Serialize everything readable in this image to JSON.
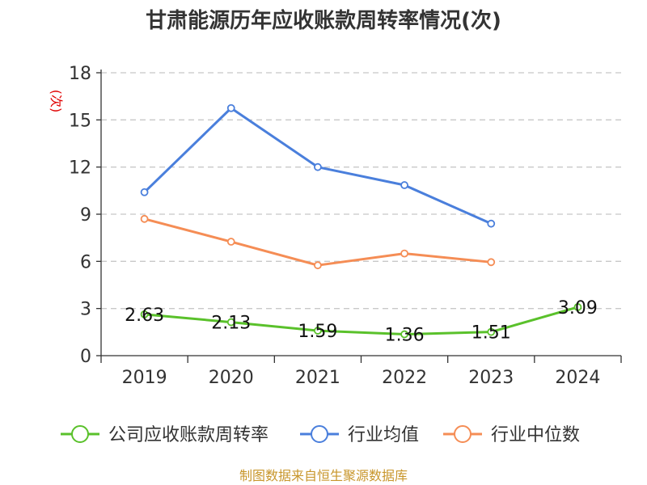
{
  "title": "甘肃能源历年应收账款周转率情况(次)",
  "source": "制图数据来自恒生聚源数据库",
  "colors": {
    "company": "#5ac12b",
    "industry_avg": "#4a7fdc",
    "industry_median": "#f58d55",
    "grid": "#c8c8c8",
    "axis": "#333333"
  },
  "chart_data": {
    "type": "line",
    "title": "甘肃能源历年应收账款周转率情况(次)",
    "xlabel": "",
    "ylabel": "(次)",
    "categories": [
      "2019",
      "2020",
      "2021",
      "2022",
      "2023",
      "2024"
    ],
    "ylim": [
      0,
      18
    ],
    "yticks": [
      0,
      3,
      6,
      9,
      12,
      15,
      18
    ],
    "grid": true,
    "legend_position": "bottom",
    "series": [
      {
        "key": "company",
        "name": "公司应收账款周转率",
        "values": [
          2.63,
          2.13,
          1.59,
          1.36,
          1.51,
          3.09
        ],
        "labels": [
          "2.63",
          "2.13",
          "1.59",
          "1.36",
          "1.51",
          "3.09"
        ]
      },
      {
        "key": "industry_avg",
        "name": "行业均值",
        "values": [
          10.4,
          15.75,
          12.0,
          10.85,
          8.4,
          null
        ]
      },
      {
        "key": "industry_median",
        "name": "行业中位数",
        "values": [
          8.7,
          7.25,
          5.75,
          6.5,
          5.95,
          null
        ]
      }
    ]
  }
}
